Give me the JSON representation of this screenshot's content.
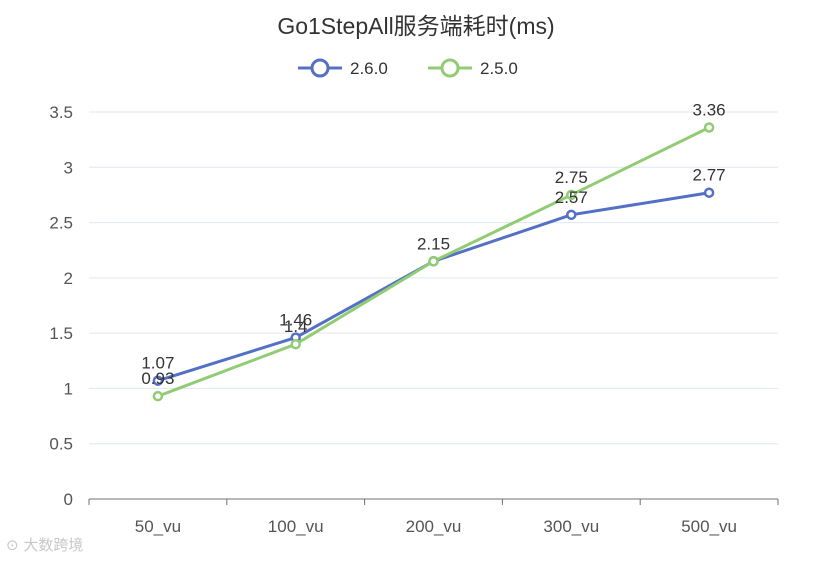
{
  "watermark": {
    "logo_text": "大数跨境"
  },
  "chart_data": {
    "type": "line",
    "title": "Go1StepAll服务端耗时(ms)",
    "xlabel": "",
    "ylabel": "",
    "categories": [
      "50_vu",
      "100_vu",
      "200_vu",
      "300_vu",
      "500_vu"
    ],
    "y_ticks": [
      "0",
      "0.5",
      "1",
      "1.5",
      "2",
      "2.5",
      "3",
      "3.5"
    ],
    "ylim": [
      0,
      3.5
    ],
    "grid": true,
    "legend_position": "top-center",
    "series": [
      {
        "name": "2.6.0",
        "color": "#5470c6",
        "values": [
          1.07,
          1.46,
          2.15,
          2.57,
          2.77
        ],
        "labels": [
          "1.07",
          "1.46",
          "2.15",
          "2.57",
          "2.77"
        ]
      },
      {
        "name": "2.5.0",
        "color": "#91cc75",
        "values": [
          0.93,
          1.4,
          2.15,
          2.75,
          3.36
        ],
        "labels": [
          "0.93",
          "1.4",
          "",
          "2.75",
          "3.36"
        ]
      }
    ]
  }
}
